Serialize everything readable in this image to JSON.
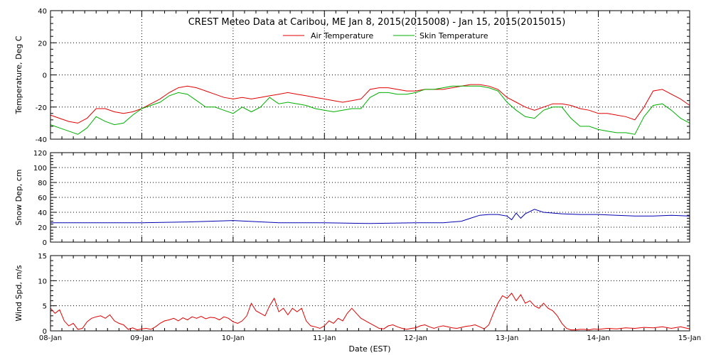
{
  "chart_data": {
    "type": "line",
    "title": "CREST Meteo Data at Caribou, ME   Jan  8, 2015(2015008) - Jan 15, 2015(2015015)",
    "xlabel": "Date (EST)",
    "x_ticks": [
      "08-Jan",
      "09-Jan",
      "10-Jan",
      "11-Jan",
      "12-Jan",
      "13-Jan",
      "14-Jan",
      "15-Jan"
    ],
    "x_range_days": [
      0,
      7
    ],
    "grid": true,
    "legend_position": "top-center",
    "panels": [
      {
        "id": "temperature",
        "ylabel": "Temperature, Deg C",
        "ylim": [
          -40,
          40
        ],
        "y_ticks": [
          -40,
          -20,
          0,
          20,
          40
        ],
        "y_tick_labels": [
          "-40",
          "-20",
          "0",
          "20",
          "40"
        ],
        "series": [
          {
            "name": "Air Temperature",
            "color": "#e00000",
            "day": [
              0,
              0.1,
              0.2,
              0.3,
              0.4,
              0.5,
              0.6,
              0.7,
              0.8,
              0.9,
              1.0,
              1.1,
              1.2,
              1.3,
              1.4,
              1.5,
              1.6,
              1.7,
              1.8,
              1.9,
              2.0,
              2.1,
              2.2,
              2.3,
              2.4,
              2.5,
              2.6,
              2.7,
              2.8,
              2.9,
              3.0,
              3.1,
              3.2,
              3.3,
              3.4,
              3.5,
              3.6,
              3.7,
              3.8,
              3.9,
              4.0,
              4.1,
              4.2,
              4.3,
              4.4,
              4.5,
              4.6,
              4.7,
              4.8,
              4.9,
              5.0,
              5.1,
              5.2,
              5.3,
              5.4,
              5.5,
              5.6,
              5.7,
              5.8,
              5.9,
              6.0,
              6.1,
              6.2,
              6.3,
              6.4,
              6.5,
              6.6,
              6.7,
              6.8,
              6.9,
              7.0
            ],
            "values": [
              -25,
              -27,
              -29,
              -30,
              -27,
              -21,
              -21,
              -23,
              -24,
              -23,
              -21,
              -18,
              -15,
              -11,
              -8,
              -7,
              -8,
              -10,
              -12,
              -14,
              -15,
              -14,
              -15,
              -14,
              -13,
              -12,
              -11,
              -12,
              -13,
              -14,
              -15,
              -16,
              -17,
              -16,
              -15,
              -9,
              -8,
              -8,
              -9,
              -10,
              -10,
              -9,
              -9,
              -9,
              -8,
              -7,
              -6,
              -6,
              -7,
              -9,
              -14,
              -17,
              -20,
              -22,
              -20,
              -18,
              -18,
              -19,
              -21,
              -22,
              -24,
              -24,
              -25,
              -26,
              -28,
              -20,
              -10,
              -9,
              -12,
              -15,
              -19
            ]
          },
          {
            "name": "Skin Temperature",
            "color": "#00b000",
            "day": [
              0,
              0.1,
              0.2,
              0.3,
              0.4,
              0.5,
              0.6,
              0.7,
              0.8,
              0.9,
              1.0,
              1.1,
              1.2,
              1.3,
              1.4,
              1.5,
              1.6,
              1.7,
              1.8,
              1.9,
              2.0,
              2.1,
              2.2,
              2.3,
              2.4,
              2.5,
              2.6,
              2.7,
              2.8,
              2.9,
              3.0,
              3.1,
              3.2,
              3.3,
              3.4,
              3.5,
              3.6,
              3.7,
              3.8,
              3.9,
              4.0,
              4.1,
              4.2,
              4.3,
              4.4,
              4.5,
              4.6,
              4.7,
              4.8,
              4.9,
              5.0,
              5.1,
              5.2,
              5.3,
              5.4,
              5.5,
              5.6,
              5.7,
              5.8,
              5.9,
              6.0,
              6.1,
              6.2,
              6.3,
              6.4,
              6.5,
              6.6,
              6.7,
              6.8,
              6.9,
              7.0
            ],
            "values": [
              -31,
              -33,
              -35,
              -37,
              -33,
              -26,
              -29,
              -31,
              -30,
              -25,
              -21,
              -19,
              -17,
              -13,
              -11,
              -12,
              -16,
              -20,
              -20,
              -22,
              -24,
              -20,
              -23,
              -20,
              -14,
              -18,
              -17,
              -18,
              -19,
              -21,
              -22,
              -23,
              -22,
              -21,
              -21,
              -14,
              -11,
              -11,
              -12,
              -12,
              -11,
              -9,
              -9,
              -8,
              -7,
              -7,
              -7,
              -7,
              -8,
              -10,
              -17,
              -22,
              -26,
              -27,
              -22,
              -20,
              -20,
              -27,
              -32,
              -32,
              -34,
              -35,
              -36,
              -36,
              -37,
              -26,
              -19,
              -18,
              -22,
              -27,
              -30
            ]
          }
        ]
      },
      {
        "id": "snow",
        "ylabel": "Snow Dep, cm",
        "ylim": [
          0,
          120
        ],
        "y_ticks": [
          0,
          20,
          40,
          60,
          80,
          100,
          120
        ],
        "y_tick_labels": [
          "0",
          "20",
          "40",
          "60",
          "80",
          "100",
          "120"
        ],
        "series": [
          {
            "name": "Snow Depth",
            "color": "#0000b0",
            "day": [
              0,
              0.5,
              1.0,
              1.5,
              2.0,
              2.5,
              3.0,
              3.5,
              4.0,
              4.3,
              4.5,
              4.6,
              4.7,
              4.8,
              4.9,
              5.0,
              5.05,
              5.1,
              5.15,
              5.2,
              5.3,
              5.4,
              5.6,
              5.8,
              6.0,
              6.2,
              6.4,
              6.6,
              6.8,
              7.0
            ],
            "values": [
              26,
              26,
              26,
              27,
              29,
              26,
              26,
              25,
              26,
              26,
              28,
              32,
              36,
              37,
              37,
              35,
              30,
              39,
              32,
              38,
              44,
              40,
              38,
              37,
              37,
              36,
              35,
              35,
              36,
              35
            ]
          }
        ]
      },
      {
        "id": "wind",
        "ylabel": "Wind Spd, m/s",
        "ylim": [
          0,
          15
        ],
        "y_ticks": [
          0,
          5,
          10,
          15
        ],
        "y_tick_labels": [
          "0",
          "5",
          "10",
          "15"
        ],
        "series": [
          {
            "name": "Wind Speed",
            "color": "#e00000",
            "day": [
              0,
              0.05,
              0.1,
              0.15,
              0.2,
              0.25,
              0.3,
              0.35,
              0.4,
              0.45,
              0.5,
              0.55,
              0.6,
              0.65,
              0.7,
              0.75,
              0.8,
              0.85,
              0.9,
              0.95,
              1.0,
              1.05,
              1.1,
              1.15,
              1.2,
              1.25,
              1.3,
              1.35,
              1.4,
              1.45,
              1.5,
              1.55,
              1.6,
              1.65,
              1.7,
              1.75,
              1.8,
              1.85,
              1.9,
              1.95,
              2.0,
              2.05,
              2.1,
              2.15,
              2.2,
              2.25,
              2.3,
              2.35,
              2.4,
              2.45,
              2.5,
              2.55,
              2.6,
              2.65,
              2.7,
              2.75,
              2.8,
              2.85,
              2.9,
              2.95,
              3.0,
              3.05,
              3.1,
              3.15,
              3.2,
              3.25,
              3.3,
              3.35,
              3.4,
              3.45,
              3.5,
              3.55,
              3.6,
              3.65,
              3.7,
              3.75,
              3.8,
              3.85,
              3.9,
              3.95,
              4.0,
              4.05,
              4.1,
              4.15,
              4.2,
              4.25,
              4.3,
              4.35,
              4.4,
              4.45,
              4.5,
              4.55,
              4.6,
              4.65,
              4.7,
              4.75,
              4.8,
              4.85,
              4.9,
              4.95,
              5.0,
              5.05,
              5.1,
              5.15,
              5.2,
              5.25,
              5.3,
              5.35,
              5.4,
              5.45,
              5.5,
              5.55,
              5.6,
              5.65,
              5.7,
              5.75,
              5.8,
              5.85,
              5.9,
              5.95,
              6.0,
              6.1,
              6.2,
              6.3,
              6.4,
              6.5,
              6.6,
              6.7,
              6.8,
              6.9,
              7.0
            ],
            "values": [
              4.5,
              3.5,
              4.2,
              2.0,
              1.0,
              1.5,
              0.3,
              0.5,
              1.8,
              2.5,
              2.8,
              3.0,
              2.5,
              3.2,
              2.0,
              1.5,
              1.2,
              0.3,
              0.6,
              0.2,
              0.4,
              0.5,
              0.3,
              0.8,
              1.5,
              2.0,
              2.2,
              2.5,
              2.0,
              2.6,
              2.2,
              2.8,
              2.5,
              2.9,
              2.4,
              2.7,
              2.6,
              2.2,
              2.8,
              2.5,
              1.8,
              1.5,
              2.0,
              3.0,
              5.5,
              4.0,
              3.5,
              3.0,
              5.0,
              6.5,
              3.8,
              4.5,
              3.2,
              4.5,
              3.8,
              4.5,
              2.0,
              1.0,
              0.8,
              0.5,
              1.0,
              2.0,
              1.5,
              2.5,
              2.0,
              3.5,
              4.5,
              3.5,
              2.5,
              2.0,
              1.5,
              1.0,
              0.5,
              0.4,
              1.0,
              1.2,
              0.8,
              0.5,
              0.3,
              0.5,
              0.6,
              1.0,
              1.2,
              0.8,
              0.5,
              0.8,
              1.0,
              0.8,
              0.6,
              0.5,
              0.7,
              0.9,
              1.0,
              1.2,
              0.8,
              0.4,
              1.2,
              3.5,
              5.5,
              7.0,
              6.5,
              7.5,
              6.0,
              7.2,
              5.5,
              6.0,
              5.0,
              4.5,
              5.5,
              4.5,
              4.0,
              3.0,
              1.5,
              0.5,
              0.2,
              0.2,
              0.3,
              0.3,
              0.2,
              0.4,
              0.3,
              0.5,
              0.4,
              0.6,
              0.5,
              0.7,
              0.6,
              0.8,
              0.5,
              0.8,
              0.4
            ]
          }
        ]
      }
    ]
  }
}
